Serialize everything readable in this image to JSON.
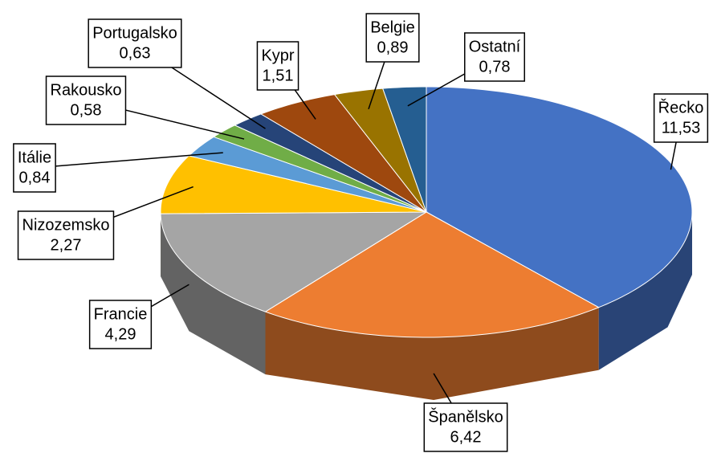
{
  "chart_data": {
    "type": "pie3d",
    "categories": [
      "Řecko",
      "Španělsko",
      "Francie",
      "Nizozemsko",
      "Itálie",
      "Rakousko",
      "Portugalsko",
      "Kypr",
      "Belgie",
      "Ostatní"
    ],
    "values": [
      11.53,
      6.42,
      4.29,
      2.27,
      0.84,
      0.58,
      0.63,
      1.51,
      0.89,
      0.78
    ],
    "value_labels": [
      "11,53",
      "6,42",
      "4,29",
      "2,27",
      "0,84",
      "0,58",
      "0,63",
      "1,51",
      "0,89",
      "0,78"
    ],
    "colors": [
      "#4472c4",
      "#ed7d31",
      "#a5a5a5",
      "#ffc000",
      "#5b9bd5",
      "#70ad47",
      "#264478",
      "#9e480e",
      "#997300",
      "#255e91"
    ]
  }
}
